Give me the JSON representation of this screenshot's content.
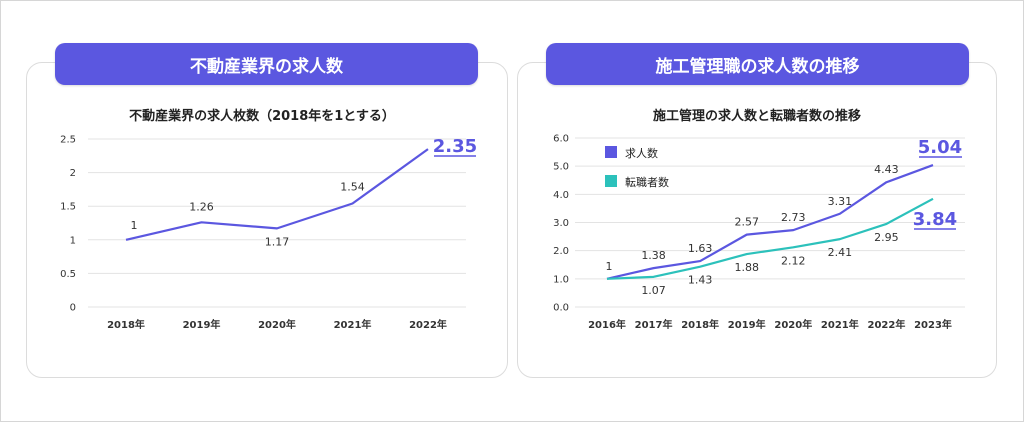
{
  "banners": {
    "left": "不動産業界の求人数",
    "right": "施工管理職の求人数の推移"
  },
  "chart_data": [
    {
      "type": "line",
      "title": "不動産業界の求人枚数（2018年を1とする）",
      "categories": [
        "2018年",
        "2019年",
        "2020年",
        "2021年",
        "2022年"
      ],
      "series": [
        {
          "values": [
            1,
            1.26,
            1.17,
            1.54,
            2.35
          ],
          "color": "#5b57e0"
        }
      ],
      "data_labels": [
        "1",
        "1.26",
        "1.17",
        "1.54"
      ],
      "highlight_label": "2.35",
      "ylim": [
        0,
        2.5
      ],
      "yticks": [
        "0",
        "0.5",
        "1",
        "1.5",
        "2",
        "2.5"
      ],
      "grid": true,
      "legend": "none"
    },
    {
      "type": "line",
      "title": "施工管理の求人数と転職者数の推移",
      "categories": [
        "2016年",
        "2017年",
        "2018年",
        "2019年",
        "2020年",
        "2021年",
        "2022年",
        "2023年"
      ],
      "series": [
        {
          "name": "求人数",
          "values": [
            1,
            1.38,
            1.63,
            2.57,
            2.73,
            3.31,
            4.43,
            5.04
          ],
          "color": "#5b57e0",
          "data_labels": [
            "1",
            "1.38",
            "1.63",
            "2.57",
            "2.73",
            "3.31",
            "4.43"
          ],
          "highlight_label": "5.04"
        },
        {
          "name": "転職者数",
          "values": [
            1,
            1.07,
            1.43,
            1.88,
            2.12,
            2.41,
            2.95,
            3.84
          ],
          "color": "#2cc1bb",
          "data_labels": [
            "1.07",
            "1.43",
            "1.88",
            "2.12",
            "2.41",
            "2.95"
          ],
          "highlight_label": "3.84"
        }
      ],
      "ylim": [
        0,
        6
      ],
      "yticks": [
        "0.0",
        "1.0",
        "2.0",
        "3.0",
        "4.0",
        "5.0",
        "6.0"
      ],
      "grid": true,
      "legend": "top-left"
    }
  ]
}
